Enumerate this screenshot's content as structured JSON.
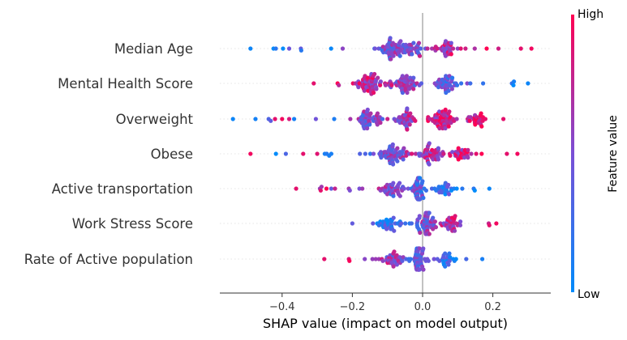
{
  "chart_data": {
    "type": "scatter",
    "subtype": "shap-beeswarm",
    "xlabel": "SHAP value (impact on model output)",
    "xlim": [
      -0.59,
      0.37
    ],
    "xticks": [
      {
        "value": -0.4,
        "label": "−0.4"
      },
      {
        "value": -0.2,
        "label": "−0.2"
      },
      {
        "value": 0.0,
        "label": "0.0"
      },
      {
        "value": 0.2,
        "label": "0.2"
      }
    ],
    "zero_line": true,
    "colorbar": {
      "title": "Feature value",
      "high_label": "High",
      "low_label": "Low",
      "low_color": "#008bfb",
      "mid_color": "#7a4fd6",
      "high_color": "#ff0052"
    },
    "features": [
      {
        "name": "Median Age",
        "min": -0.49,
        "max": 0.31,
        "low_side": "left",
        "peaks": [
          {
            "x": -0.09,
            "w": 0.06,
            "h": 1.0
          },
          {
            "x": -0.02,
            "w": 0.04,
            "h": 0.5
          },
          {
            "x": 0.06,
            "w": 0.05,
            "h": 0.6
          }
        ],
        "outliers": [
          {
            "x": -0.49,
            "v": 0.05
          },
          {
            "x": -0.38,
            "v": 0.45
          },
          {
            "x": 0.31,
            "v": 0.95
          },
          {
            "x": 0.28,
            "v": 0.9
          }
        ]
      },
      {
        "name": "Mental Health Score",
        "min": -0.31,
        "max": 0.3,
        "low_side": "right",
        "peaks": [
          {
            "x": -0.15,
            "w": 0.05,
            "h": 1.0
          },
          {
            "x": -0.05,
            "w": 0.05,
            "h": 0.9
          },
          {
            "x": 0.07,
            "w": 0.04,
            "h": 0.7
          }
        ],
        "outliers": [
          {
            "x": -0.31,
            "v": 0.9
          },
          {
            "x": 0.3,
            "v": 0.05
          },
          {
            "x": 0.26,
            "v": 0.1
          }
        ]
      },
      {
        "name": "Overweight",
        "min": -0.54,
        "max": 0.23,
        "low_side": "left",
        "peaks": [
          {
            "x": -0.15,
            "w": 0.05,
            "h": 0.8
          },
          {
            "x": -0.05,
            "w": 0.04,
            "h": 0.6
          },
          {
            "x": 0.05,
            "w": 0.05,
            "h": 1.0
          },
          {
            "x": 0.15,
            "w": 0.04,
            "h": 0.5
          }
        ],
        "outliers": [
          {
            "x": -0.54,
            "v": 0.05
          },
          {
            "x": -0.42,
            "v": 0.9
          },
          {
            "x": -0.4,
            "v": 0.95
          },
          {
            "x": -0.38,
            "v": 0.85
          },
          {
            "x": 0.23,
            "v": 0.9
          }
        ]
      },
      {
        "name": "Obese",
        "min": -0.49,
        "max": 0.27,
        "low_side": "left",
        "peaks": [
          {
            "x": -0.08,
            "w": 0.06,
            "h": 1.0
          },
          {
            "x": 0.02,
            "w": 0.04,
            "h": 0.8
          },
          {
            "x": 0.11,
            "w": 0.05,
            "h": 0.5
          }
        ],
        "outliers": [
          {
            "x": -0.49,
            "v": 0.95
          },
          {
            "x": -0.34,
            "v": 0.9
          },
          {
            "x": -0.3,
            "v": 0.88
          },
          {
            "x": -0.26,
            "v": 0.1
          },
          {
            "x": 0.27,
            "v": 0.95
          },
          {
            "x": 0.24,
            "v": 0.9
          }
        ]
      },
      {
        "name": "Active transportation",
        "min": -0.36,
        "max": 0.19,
        "low_side": "right",
        "peaks": [
          {
            "x": -0.08,
            "w": 0.05,
            "h": 0.7
          },
          {
            "x": -0.01,
            "w": 0.02,
            "h": 1.0
          },
          {
            "x": 0.06,
            "w": 0.05,
            "h": 0.45
          }
        ],
        "outliers": [
          {
            "x": -0.36,
            "v": 0.9
          },
          {
            "x": -0.29,
            "v": 0.9
          },
          {
            "x": -0.26,
            "v": 0.4
          },
          {
            "x": -0.18,
            "v": 0.5
          },
          {
            "x": 0.19,
            "v": 0.05
          }
        ]
      },
      {
        "name": "Work Stress Score",
        "min": -0.2,
        "max": 0.21,
        "low_side": "left",
        "peaks": [
          {
            "x": -0.1,
            "w": 0.05,
            "h": 0.5
          },
          {
            "x": 0.01,
            "w": 0.03,
            "h": 1.0
          },
          {
            "x": 0.08,
            "w": 0.04,
            "h": 0.55
          }
        ],
        "outliers": [
          {
            "x": -0.2,
            "v": 0.4
          },
          {
            "x": 0.21,
            "v": 0.95
          },
          {
            "x": 0.19,
            "v": 0.9
          }
        ]
      },
      {
        "name": "Rate of Active population",
        "min": -0.28,
        "max": 0.17,
        "low_side": "right",
        "peaks": [
          {
            "x": -0.09,
            "w": 0.05,
            "h": 0.6
          },
          {
            "x": -0.01,
            "w": 0.02,
            "h": 1.0
          },
          {
            "x": 0.07,
            "w": 0.04,
            "h": 0.4
          }
        ],
        "outliers": [
          {
            "x": -0.28,
            "v": 0.9
          },
          {
            "x": -0.21,
            "v": 0.85
          },
          {
            "x": 0.17,
            "v": 0.1
          }
        ]
      }
    ]
  }
}
